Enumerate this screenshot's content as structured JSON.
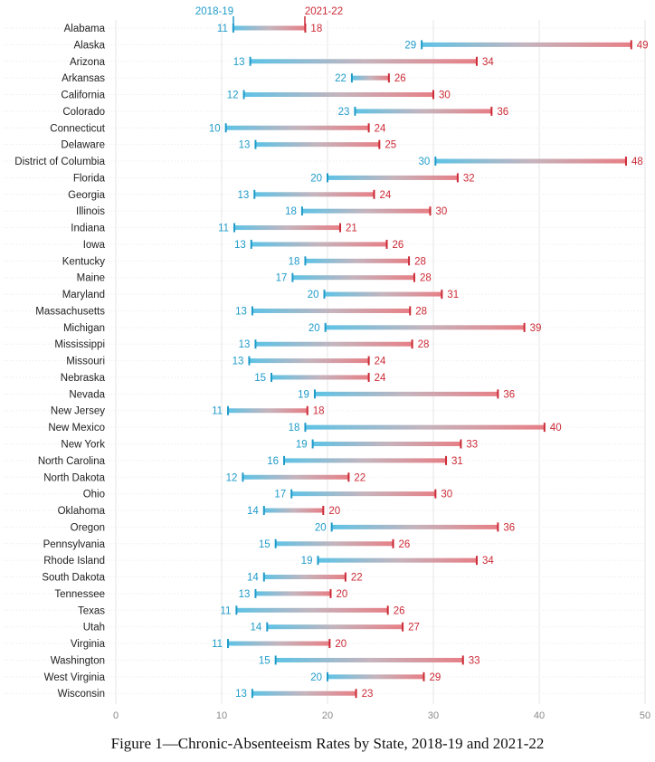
{
  "chart_data": {
    "type": "dumbbell",
    "caption": "Figure 1—Chronic-Absenteeism Rates by State, 2018-19 and 2021-22",
    "series": [
      {
        "name": "2018-19",
        "color": "#1f9bc9"
      },
      {
        "name": "2021-22",
        "color": "#cc2a36"
      }
    ],
    "xlim": [
      0,
      50
    ],
    "xticks": [
      0,
      10,
      20,
      30,
      40,
      50
    ],
    "grid": "vertical",
    "categories": [
      "Alabama",
      "Alaska",
      "Arizona",
      "Arkansas",
      "California",
      "Colorado",
      "Connecticut",
      "Delaware",
      "District of Columbia",
      "Florida",
      "Georgia",
      "Illinois",
      "Indiana",
      "Iowa",
      "Kentucky",
      "Maine",
      "Maryland",
      "Massachusetts",
      "Michigan",
      "Mississippi",
      "Missouri",
      "Nebraska",
      "Nevada",
      "New Jersey",
      "New Mexico",
      "New York",
      "North Carolina",
      "North Dakota",
      "Ohio",
      "Oklahoma",
      "Oregon",
      "Pennsylvania",
      "Rhode Island",
      "South Dakota",
      "Tennessee",
      "Texas",
      "Utah",
      "Virginia",
      "Washington",
      "West Virginia",
      "Wisconsin"
    ],
    "values_2018_19": [
      11,
      29,
      13,
      22,
      12,
      23,
      10,
      13,
      30,
      20,
      13,
      18,
      11,
      13,
      18,
      17,
      20,
      13,
      20,
      13,
      13,
      15,
      19,
      11,
      18,
      19,
      16,
      12,
      17,
      14,
      20,
      15,
      19,
      14,
      13,
      11,
      14,
      11,
      15,
      20,
      13
    ],
    "values_2021_22": [
      18,
      49,
      34,
      26,
      30,
      36,
      24,
      25,
      48,
      32,
      24,
      30,
      21,
      26,
      28,
      28,
      31,
      28,
      39,
      28,
      24,
      24,
      36,
      18,
      40,
      33,
      31,
      22,
      30,
      20,
      36,
      26,
      34,
      22,
      20,
      26,
      27,
      20,
      33,
      29,
      23
    ],
    "plot_2018_19": [
      11.1,
      28.9,
      12.7,
      22.3,
      12.1,
      22.6,
      10.4,
      13.2,
      30.2,
      20.0,
      13.1,
      17.6,
      11.2,
      12.8,
      17.9,
      16.7,
      19.7,
      12.9,
      19.8,
      13.2,
      12.6,
      14.7,
      18.8,
      10.6,
      17.9,
      18.6,
      15.9,
      12.0,
      16.6,
      14.0,
      20.4,
      15.1,
      19.1,
      14.0,
      13.2,
      11.4,
      14.3,
      10.6,
      15.1,
      20.0,
      12.9
    ],
    "plot_2021_22": [
      17.9,
      48.7,
      34.1,
      25.8,
      30.0,
      35.5,
      23.9,
      24.9,
      48.2,
      32.3,
      24.4,
      29.7,
      21.2,
      25.6,
      27.7,
      28.2,
      30.8,
      27.8,
      38.6,
      28.0,
      23.9,
      23.9,
      36.1,
      18.1,
      40.5,
      32.6,
      31.2,
      22.0,
      30.2,
      19.6,
      36.1,
      26.2,
      34.1,
      21.7,
      20.3,
      25.7,
      27.1,
      20.2,
      32.8,
      29.1,
      22.7
    ]
  }
}
